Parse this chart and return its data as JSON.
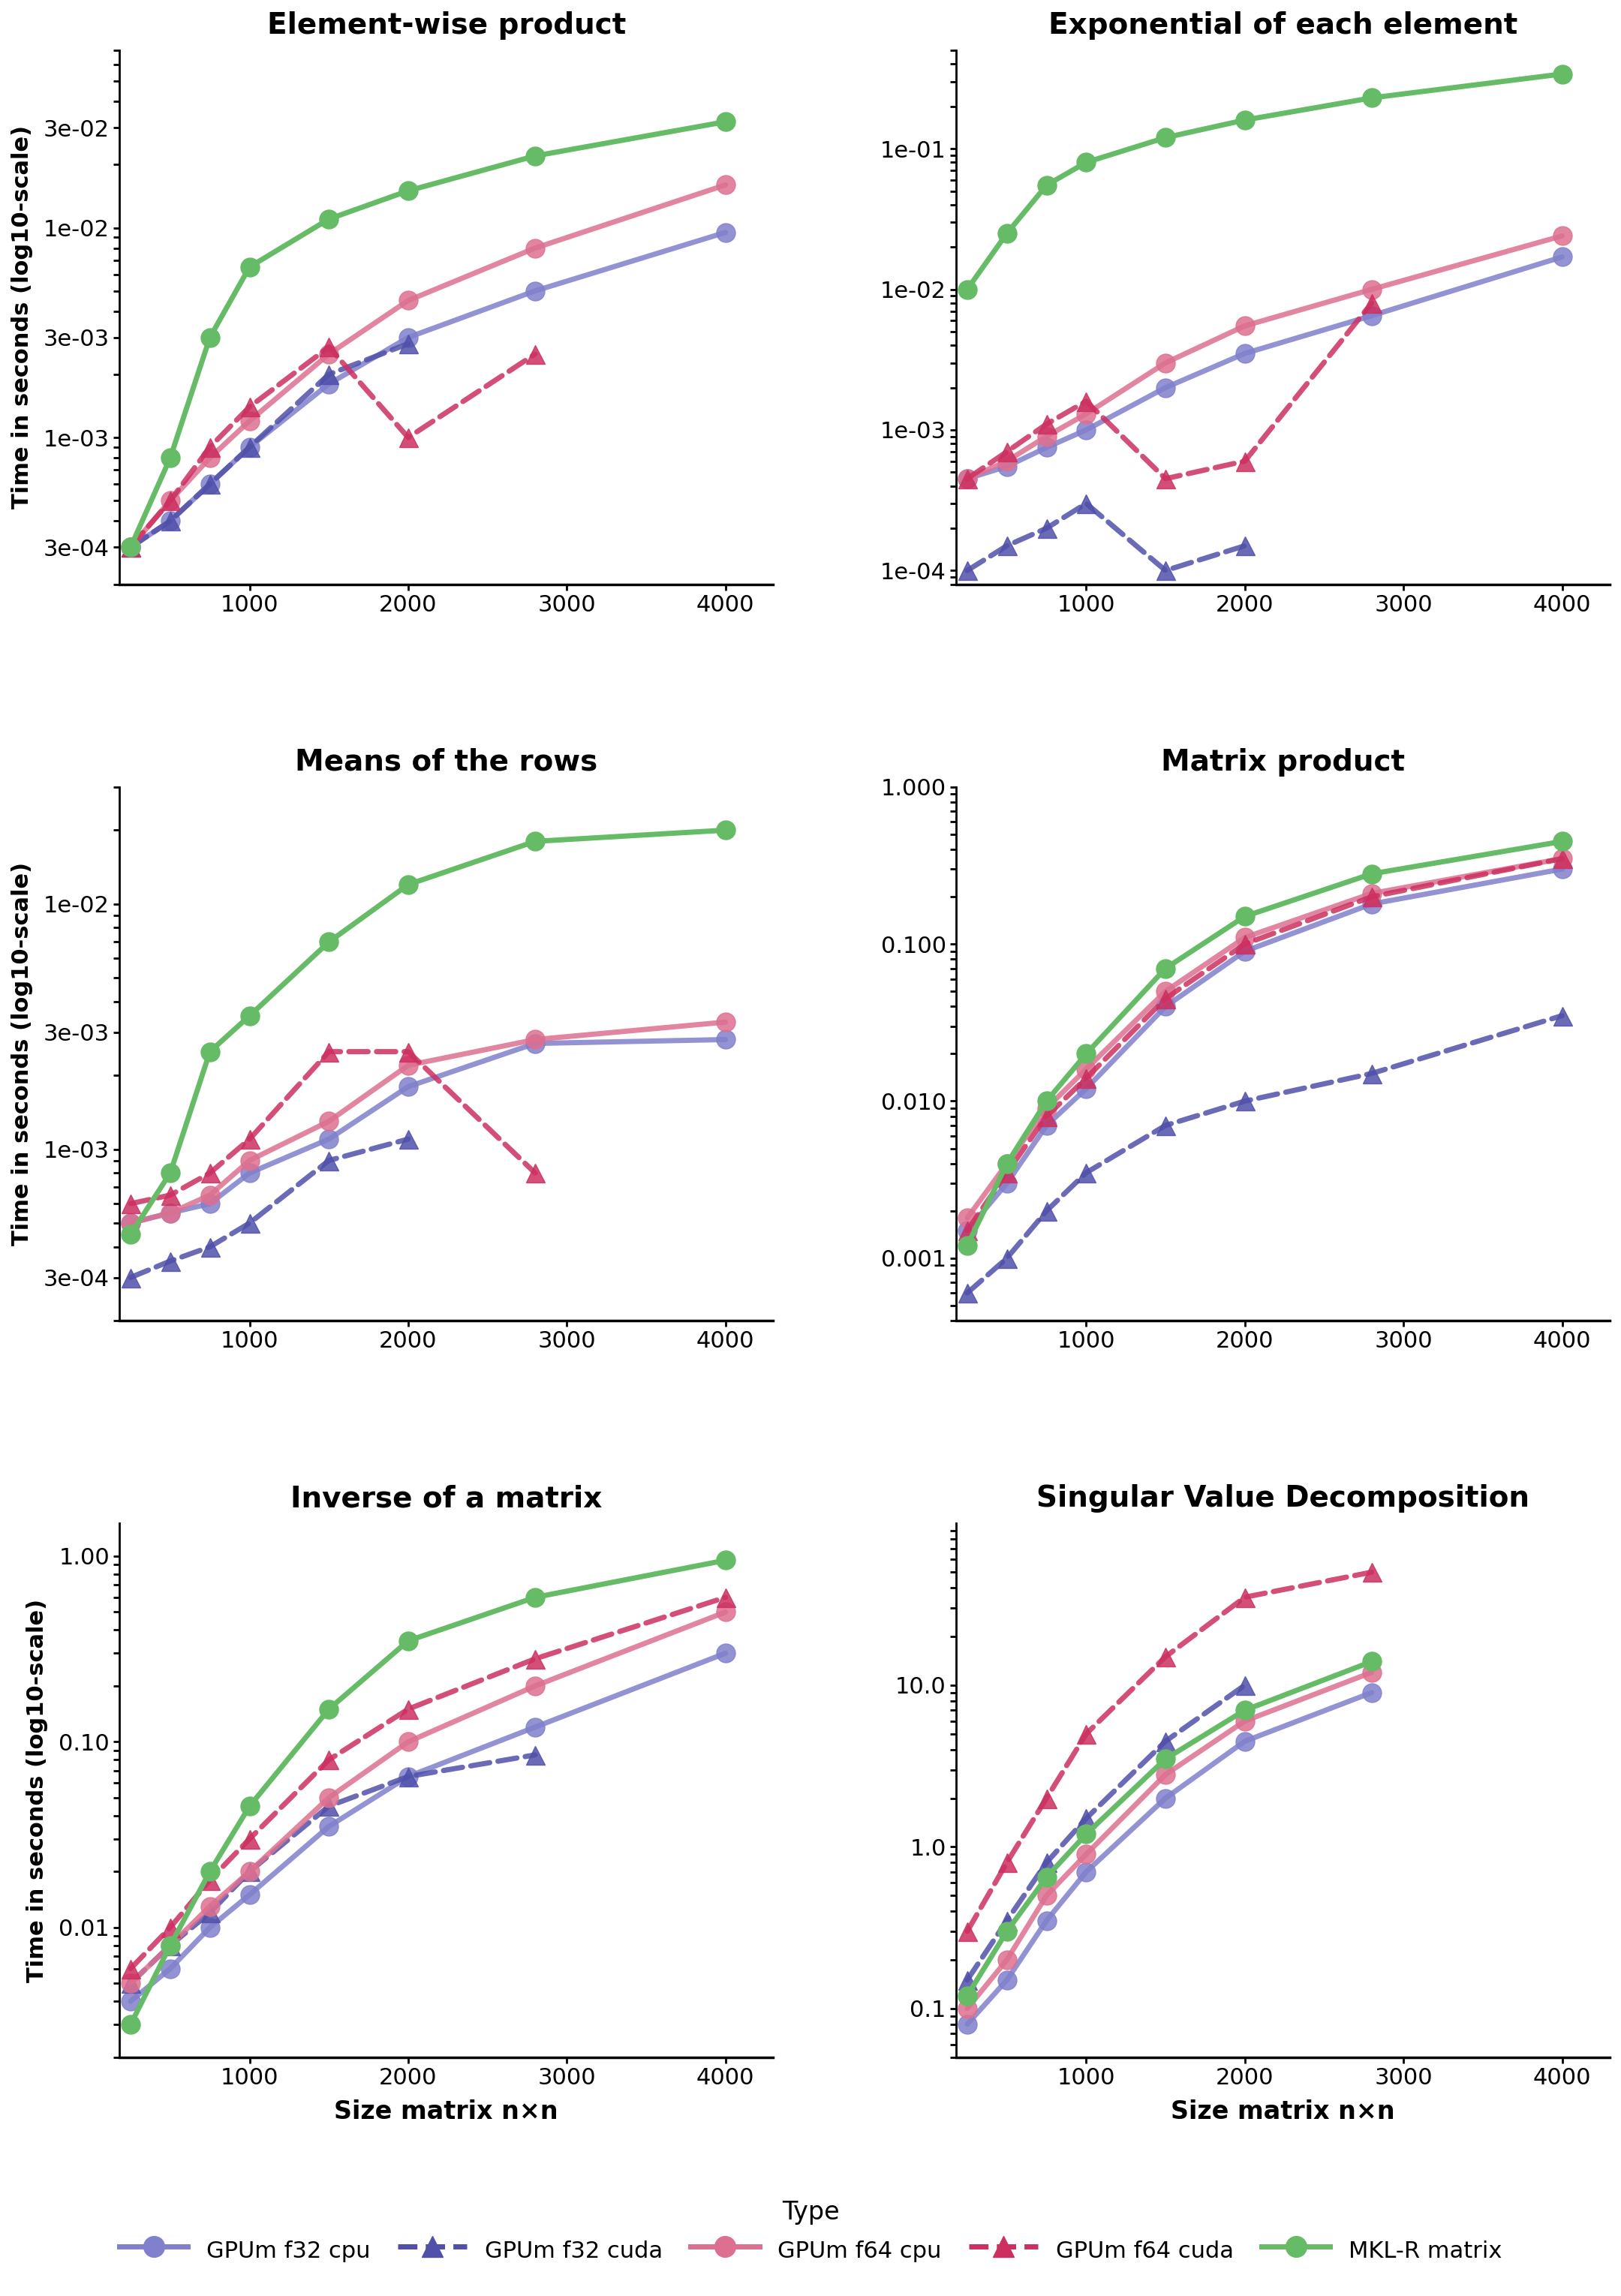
{
  "x": [
    250,
    500,
    750,
    1000,
    1500,
    2000,
    2800,
    4000
  ],
  "series": {
    "hadamard": {
      "gpum_f32_cpu": [
        0.0003,
        0.0004,
        0.0006,
        0.0009,
        0.0018,
        0.003,
        0.005,
        0.0095
      ],
      "gpum_f32_cuda": [
        0.0003,
        0.0004,
        0.0006,
        0.0009,
        0.002,
        0.0028,
        null,
        null
      ],
      "gpum_f64_cpu": [
        0.0003,
        0.0005,
        0.0008,
        0.0012,
        0.0025,
        0.0045,
        0.008,
        0.016
      ],
      "gpum_f64_cuda": [
        0.0003,
        0.0005,
        0.0009,
        0.0014,
        0.0027,
        0.001,
        0.0025,
        null
      ],
      "mkl": [
        0.0003,
        0.0008,
        0.003,
        0.0065,
        0.011,
        0.015,
        0.022,
        0.032
      ]
    },
    "exp": {
      "gpum_f32_cpu": [
        0.00045,
        0.00055,
        0.00075,
        0.001,
        0.002,
        0.0035,
        0.0065,
        0.017
      ],
      "gpum_f32_cuda": [
        0.0001,
        0.00015,
        0.0002,
        0.0003,
        0.0001,
        0.00015,
        null,
        null
      ],
      "gpum_f64_cpu": [
        0.00045,
        0.0006,
        0.0009,
        0.0013,
        0.003,
        0.0055,
        0.01,
        0.024
      ],
      "gpum_f64_cuda": [
        0.00045,
        0.0007,
        0.0011,
        0.0016,
        0.00045,
        0.0006,
        0.008,
        null
      ],
      "mkl": [
        0.01,
        0.025,
        0.055,
        0.08,
        0.12,
        0.16,
        0.23,
        0.34
      ]
    },
    "rowmean": {
      "gpum_f32_cpu": [
        0.0005,
        0.00055,
        0.0006,
        0.0008,
        0.0011,
        0.0018,
        0.0027,
        0.0028
      ],
      "gpum_f32_cuda": [
        0.0003,
        0.00035,
        0.0004,
        0.0005,
        0.0009,
        0.0011,
        null,
        null
      ],
      "gpum_f64_cpu": [
        0.0005,
        0.00055,
        0.00065,
        0.0009,
        0.0013,
        0.0022,
        0.0028,
        0.0033
      ],
      "gpum_f64_cuda": [
        0.0006,
        0.00065,
        0.0008,
        0.0011,
        0.0025,
        0.0025,
        0.0008,
        null
      ],
      "mkl": [
        0.00045,
        0.0008,
        0.0025,
        0.0035,
        0.007,
        0.012,
        0.018,
        0.02
      ]
    },
    "matprod": {
      "gpum_f32_cpu": [
        0.0015,
        0.003,
        0.007,
        0.012,
        0.04,
        0.09,
        0.18,
        0.3
      ],
      "gpum_f32_cuda": [
        0.0006,
        0.001,
        0.002,
        0.0035,
        0.007,
        0.01,
        0.015,
        0.035
      ],
      "gpum_f64_cpu": [
        0.0018,
        0.004,
        0.009,
        0.016,
        0.05,
        0.11,
        0.21,
        0.35
      ],
      "gpum_f64_cuda": [
        0.0015,
        0.0035,
        0.008,
        0.014,
        0.045,
        0.1,
        0.2,
        0.35
      ],
      "mkl": [
        0.0012,
        0.004,
        0.01,
        0.02,
        0.07,
        0.15,
        0.28,
        0.45
      ]
    },
    "inverse": {
      "gpum_f32_cpu": [
        0.004,
        0.006,
        0.01,
        0.015,
        0.035,
        0.065,
        0.12,
        0.3
      ],
      "gpum_f32_cuda": [
        0.005,
        0.008,
        0.012,
        0.02,
        0.045,
        0.065,
        0.085,
        null
      ],
      "gpum_f64_cpu": [
        0.005,
        0.008,
        0.013,
        0.02,
        0.05,
        0.1,
        0.2,
        0.5
      ],
      "gpum_f64_cuda": [
        0.006,
        0.01,
        0.018,
        0.03,
        0.08,
        0.15,
        0.28,
        0.6
      ],
      "mkl": [
        0.003,
        0.008,
        0.02,
        0.045,
        0.15,
        0.35,
        0.6,
        0.95
      ]
    },
    "svd": {
      "gpum_f32_cpu": [
        0.08,
        0.15,
        0.35,
        0.7,
        2.0,
        4.5,
        9.0,
        null
      ],
      "gpum_f32_cuda": [
        0.15,
        0.35,
        0.8,
        1.5,
        4.5,
        10.0,
        null,
        null
      ],
      "gpum_f64_cpu": [
        0.1,
        0.2,
        0.5,
        0.9,
        2.8,
        6.0,
        12.0,
        null
      ],
      "gpum_f64_cuda": [
        0.3,
        0.8,
        2.0,
        5.0,
        15.0,
        35.0,
        50.0,
        null
      ],
      "mkl": [
        0.12,
        0.3,
        0.65,
        1.2,
        3.5,
        7.0,
        14.0,
        null
      ]
    }
  },
  "colors": {
    "gpum_f32_cpu": "#8080CC",
    "gpum_f32_cuda": "#5050AA",
    "gpum_f64_cpu": "#DD7090",
    "gpum_f64_cuda": "#CC3060",
    "mkl": "#66BB66"
  },
  "titles": [
    "Element-wise product",
    "Exponential of each element",
    "Means of the rows",
    "Matrix product",
    "Inverse of a matrix",
    "Singular Value Decomposition"
  ],
  "ylabel": "Time in seconds (log10-scale)",
  "xlabel": "Size matrix n×n",
  "legend_labels": [
    "GPUm f32 cpu",
    "GPUm f32 cuda",
    "GPUm f64 cpu",
    "GPUm f64 cuda",
    "MKL-R matrix"
  ],
  "ylims": {
    "hadamard": [
      0.0002,
      0.07
    ],
    "exp": [
      8e-05,
      0.5
    ],
    "rowmean": [
      0.0002,
      0.03
    ],
    "matprod": [
      0.0004,
      0.8
    ],
    "inverse": [
      0.002,
      1.5
    ],
    "svd": [
      0.05,
      100.0
    ]
  },
  "yticks": {
    "hadamard": [
      0.0003,
      0.001,
      0.003,
      0.01,
      0.03
    ],
    "exp": [
      0.0001,
      0.001,
      0.01,
      0.1
    ],
    "rowmean": [
      0.0003,
      0.001,
      0.003,
      0.01
    ],
    "matprod": [
      0.001,
      0.01,
      0.1,
      1.0
    ],
    "inverse": [
      0.01,
      0.1,
      1.0
    ],
    "svd": [
      0.1,
      1.0,
      10.0
    ]
  },
  "yticklabels": {
    "hadamard": [
      "3e-04",
      "1e-03",
      "3e-03",
      "1e-02",
      "3e-02"
    ],
    "exp": [
      "1e-04",
      "1e-03",
      "1e-02",
      "1e-01"
    ],
    "rowmean": [
      "3e-04",
      "1e-03",
      "3e-03",
      "1e-02"
    ],
    "matprod": [
      "0.001",
      "0.010",
      "0.100",
      "1.000"
    ],
    "inverse": [
      "0.01",
      "0.10",
      "1.00"
    ],
    "svd": [
      "0.1",
      "1.0",
      "10.0"
    ]
  }
}
